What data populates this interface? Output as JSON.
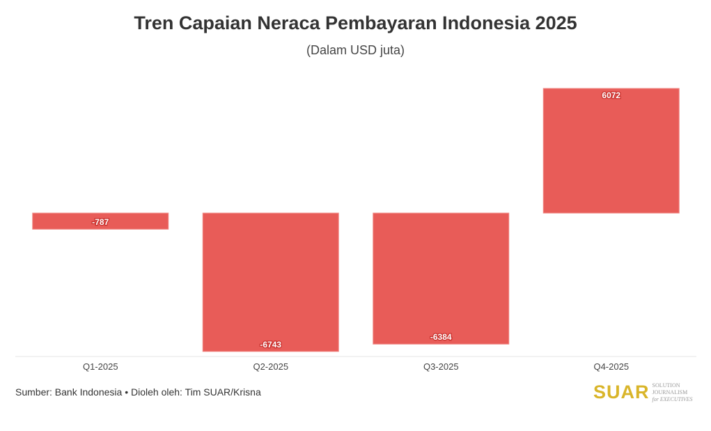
{
  "chart_data": {
    "type": "bar",
    "title": "Tren Capaian Neraca Pembayaran Indonesia 2025",
    "subtitle": "(Dalam USD juta)",
    "categories": [
      "Q1-2025",
      "Q2-2025",
      "Q3-2025",
      "Q4-2025"
    ],
    "values": [
      -787,
      -6743,
      -6384,
      6072
    ],
    "data_labels": [
      "-787",
      "-6743",
      "-6384",
      "6072"
    ],
    "xlabel": "",
    "ylabel": "",
    "ylim": [
      -7000,
      7000
    ],
    "bar_color": "#e85c58",
    "grid": false
  },
  "footer": {
    "source": "Sumber: Bank Indonesia • Dioleh oleh: Tim SUAR/Krisna"
  },
  "logo": {
    "name": "SUAR",
    "tagline1": "SOLUTION JOURNALISM",
    "tagline2": "for EXECUTIVES"
  }
}
